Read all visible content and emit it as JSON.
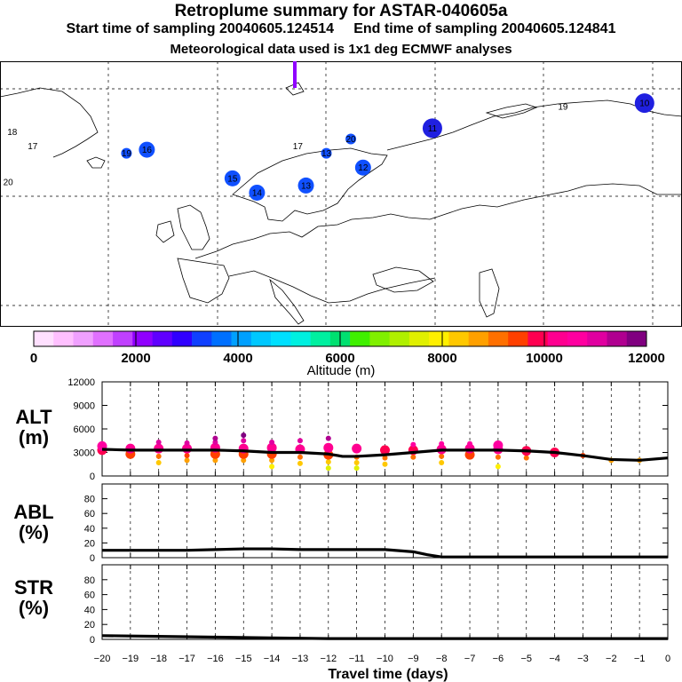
{
  "header": {
    "title": "Retroplume summary for ASTAR-040605a",
    "sampling_line": "Start time of sampling 20040605.124514     End time of sampling 20040605.124841",
    "met_line": "Meteorological data used is 1x1 deg ECMWF analyses"
  },
  "map": {
    "markers": [
      {
        "label": "18",
        "lon": -47,
        "lat": 68,
        "size": "tiny"
      },
      {
        "label": "17",
        "lon": -42,
        "lat": 64,
        "size": "tiny"
      },
      {
        "label": "20",
        "lon": -48,
        "lat": 54,
        "size": "tiny"
      },
      {
        "label": "19",
        "lon": -19,
        "lat": 62,
        "size": "small"
      },
      {
        "label": "16",
        "lon": -14,
        "lat": 63,
        "size": "medium"
      },
      {
        "label": "15",
        "lon": 7,
        "lat": 55,
        "size": "medium"
      },
      {
        "label": "14",
        "lon": 13,
        "lat": 51,
        "size": "medium"
      },
      {
        "label": "13",
        "lon": 25,
        "lat": 53,
        "size": "medium"
      },
      {
        "label": "17",
        "lon": 23,
        "lat": 64,
        "size": "tiny"
      },
      {
        "label": "13",
        "lon": 30,
        "lat": 62,
        "size": "small"
      },
      {
        "label": "20",
        "lon": 36,
        "lat": 66,
        "size": "small"
      },
      {
        "label": "12",
        "lon": 39,
        "lat": 58,
        "size": "medium"
      },
      {
        "label": "11",
        "lon": 56,
        "lat": 69,
        "size": "large"
      },
      {
        "label": "19",
        "lon": 88,
        "lat": 75,
        "size": "tiny"
      },
      {
        "label": "10",
        "lon": 108,
        "lat": 76,
        "size": "large"
      }
    ]
  },
  "colorbar": {
    "tick_labels": [
      "0",
      "2000",
      "4000",
      "6000",
      "8000",
      "10000",
      "12000"
    ],
    "axis_title": "Altitude (m)",
    "colors": [
      "#ffe0ff",
      "#ffc0ff",
      "#f0a0ff",
      "#e070ff",
      "#c040ff",
      "#9000ff",
      "#6000ff",
      "#3000ff",
      "#1040ff",
      "#0070ff",
      "#00a0ff",
      "#00c8ff",
      "#00e0ff",
      "#00f0e0",
      "#00f0a0",
      "#00e070",
      "#40f000",
      "#80f000",
      "#b0f000",
      "#e0f000",
      "#fff000",
      "#ffc800",
      "#ffa000",
      "#ff7000",
      "#ff4000",
      "#ff0050",
      "#ff0090",
      "#ff00a0",
      "#e000a0",
      "#b00090",
      "#800080"
    ]
  },
  "panels": {
    "alt": {
      "title": "ALT",
      "unit": "(m)"
    },
    "abl": {
      "title": "ABL",
      "unit": "(%)"
    },
    "str": {
      "title": "STR",
      "unit": "(%)"
    }
  },
  "xaxis": {
    "title": "Travel time (days)"
  },
  "chart_data": [
    {
      "type": "line",
      "name": "ALT",
      "ylabel": "ALT (m)",
      "ylim": [
        0,
        12000
      ],
      "yticks": [
        0,
        3000,
        6000,
        9000,
        12000
      ],
      "xlim": [
        -20,
        0
      ],
      "xticks": [
        -20,
        -19,
        -18,
        -17,
        -16,
        -15,
        -14,
        -13,
        -12,
        -11,
        -10,
        -9,
        -8,
        -7,
        -6,
        -5,
        -4,
        -3,
        -2,
        -1,
        0
      ],
      "x": [
        -20,
        -19,
        -18,
        -17,
        -16,
        -15,
        -14,
        -13,
        -12,
        -11.5,
        -11,
        -10,
        -9,
        -8,
        -7,
        -6,
        -5,
        -4,
        -3,
        -2,
        -1,
        0
      ],
      "values": [
        3400,
        3300,
        3300,
        3300,
        3300,
        3200,
        3000,
        3000,
        2800,
        2500,
        2500,
        2700,
        3000,
        3300,
        3300,
        3300,
        3200,
        3000,
        2600,
        2100,
        2000,
        2300
      ],
      "cluster_centers": [
        {
          "x": -20,
          "y": [
            3300,
            3800
          ]
        },
        {
          "x": -19,
          "y": [
            2800,
            3500
          ]
        },
        {
          "x": -18,
          "y": [
            1700,
            2500,
            3500,
            4300
          ]
        },
        {
          "x": -17,
          "y": [
            2000,
            2600,
            3500,
            4200
          ]
        },
        {
          "x": -16,
          "y": [
            2000,
            2800,
            3600,
            4300,
            4800
          ]
        },
        {
          "x": -15,
          "y": [
            2000,
            2800,
            3500,
            4500,
            5200
          ]
        },
        {
          "x": -14,
          "y": [
            1200,
            2000,
            2800,
            3600,
            4300
          ]
        },
        {
          "x": -13,
          "y": [
            1600,
            2400,
            3400,
            4500
          ]
        },
        {
          "x": -12,
          "y": [
            1000,
            1800,
            2700,
            3600,
            4800
          ]
        },
        {
          "x": -11,
          "y": [
            1000,
            1700,
            2400,
            3500
          ]
        },
        {
          "x": -10,
          "y": [
            1500,
            2300,
            3300
          ]
        },
        {
          "x": -9,
          "y": [
            2400,
            3300,
            4000
          ]
        },
        {
          "x": -8,
          "y": [
            1700,
            2500,
            3400,
            4100
          ]
        },
        {
          "x": -7,
          "y": [
            2700,
            3500,
            4100
          ]
        },
        {
          "x": -6,
          "y": [
            1200,
            2400,
            3400,
            3900
          ]
        },
        {
          "x": -5,
          "y": [
            2300,
            3200
          ]
        },
        {
          "x": -4,
          "y": [
            3000
          ]
        },
        {
          "x": -3,
          "y": [
            2600
          ]
        },
        {
          "x": -2,
          "y": [
            2000
          ]
        },
        {
          "x": -1,
          "y": [
            2000
          ]
        }
      ]
    },
    {
      "type": "line",
      "name": "ABL",
      "ylabel": "ABL (%)",
      "ylim": [
        0,
        100
      ],
      "yticks": [
        0,
        20,
        40,
        60,
        80
      ],
      "xlim": [
        -20,
        0
      ],
      "x": [
        -20,
        -18,
        -17,
        -16,
        -15,
        -14,
        -13,
        -12,
        -11,
        -10,
        -9,
        -8.5,
        -8,
        -7,
        -6,
        -5,
        -4,
        -3,
        -2,
        -1,
        0
      ],
      "values": [
        10,
        10,
        10,
        11,
        12,
        12,
        11,
        11,
        11,
        11,
        8,
        4,
        1,
        1,
        1,
        1,
        1,
        1,
        1,
        1,
        1
      ]
    },
    {
      "type": "line",
      "name": "STR",
      "ylabel": "STR (%)",
      "ylim": [
        0,
        100
      ],
      "yticks": [
        0,
        20,
        40,
        60,
        80
      ],
      "xlim": [
        -20,
        0
      ],
      "x": [
        -20,
        -18,
        -16,
        -14,
        -12,
        -10,
        -8,
        -6,
        -4,
        -2,
        0
      ],
      "values": [
        5,
        4,
        3,
        2,
        1,
        1,
        1,
        1,
        1,
        1,
        1
      ]
    }
  ]
}
